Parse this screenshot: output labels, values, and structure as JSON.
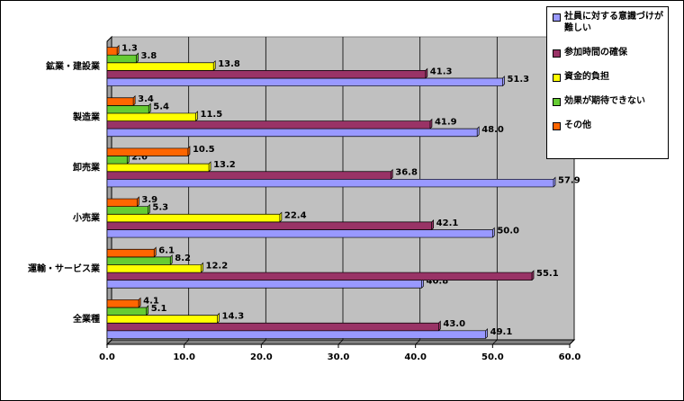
{
  "chart_data": {
    "type": "bar",
    "orientation": "horizontal",
    "categories": [
      "鉱業・建設業",
      "製造業",
      "卸売業",
      "小売業",
      "運輸・サービス業",
      "全業種"
    ],
    "series": [
      {
        "name": "社員に対する意識づけが難しい",
        "color": "#9999ff",
        "values": [
          51.3,
          48.0,
          57.9,
          50.0,
          40.8,
          49.1
        ],
        "value_labels": [
          "51.3",
          "48.0",
          "57.9",
          "50.0",
          "40.8",
          "49.1"
        ]
      },
      {
        "name": "参加時間の確保",
        "color": "#993366",
        "values": [
          41.3,
          41.9,
          36.8,
          42.1,
          55.1,
          43.0
        ],
        "value_labels": [
          "41.3",
          "41.9",
          "36.8",
          "42.1",
          "55.1",
          "43.0"
        ]
      },
      {
        "name": "資金的負担",
        "color": "#ffff00",
        "values": [
          13.8,
          11.5,
          13.2,
          22.4,
          12.2,
          14.3
        ],
        "value_labels": [
          "13.8",
          "11.5",
          "13.2",
          "22.4",
          "12.2",
          "14.3"
        ]
      },
      {
        "name": "効果が期待できない",
        "color": "#66cc33",
        "values": [
          3.8,
          5.4,
          2.6,
          5.3,
          8.2,
          5.1
        ],
        "value_labels": [
          "3.8",
          "5.4",
          "2.6",
          "5.3",
          "8.2",
          "5.1"
        ]
      },
      {
        "name": "その他",
        "color": "#ff6600",
        "values": [
          1.3,
          3.4,
          10.5,
          3.9,
          6.1,
          4.1
        ],
        "value_labels": [
          "1.3",
          "3.4",
          "10.5",
          "3.9",
          "6.1",
          "4.1"
        ]
      }
    ],
    "xlim": [
      0,
      60
    ],
    "xticks": [
      {
        "value": 0,
        "label": "0.0"
      },
      {
        "value": 10,
        "label": "10.0"
      },
      {
        "value": 20,
        "label": "20.0"
      },
      {
        "value": 30,
        "label": "30.0"
      },
      {
        "value": 40,
        "label": "40.0"
      },
      {
        "value": 50,
        "label": "50.0"
      },
      {
        "value": 60,
        "label": "60.0"
      }
    ],
    "grid": true,
    "legend": "right"
  }
}
